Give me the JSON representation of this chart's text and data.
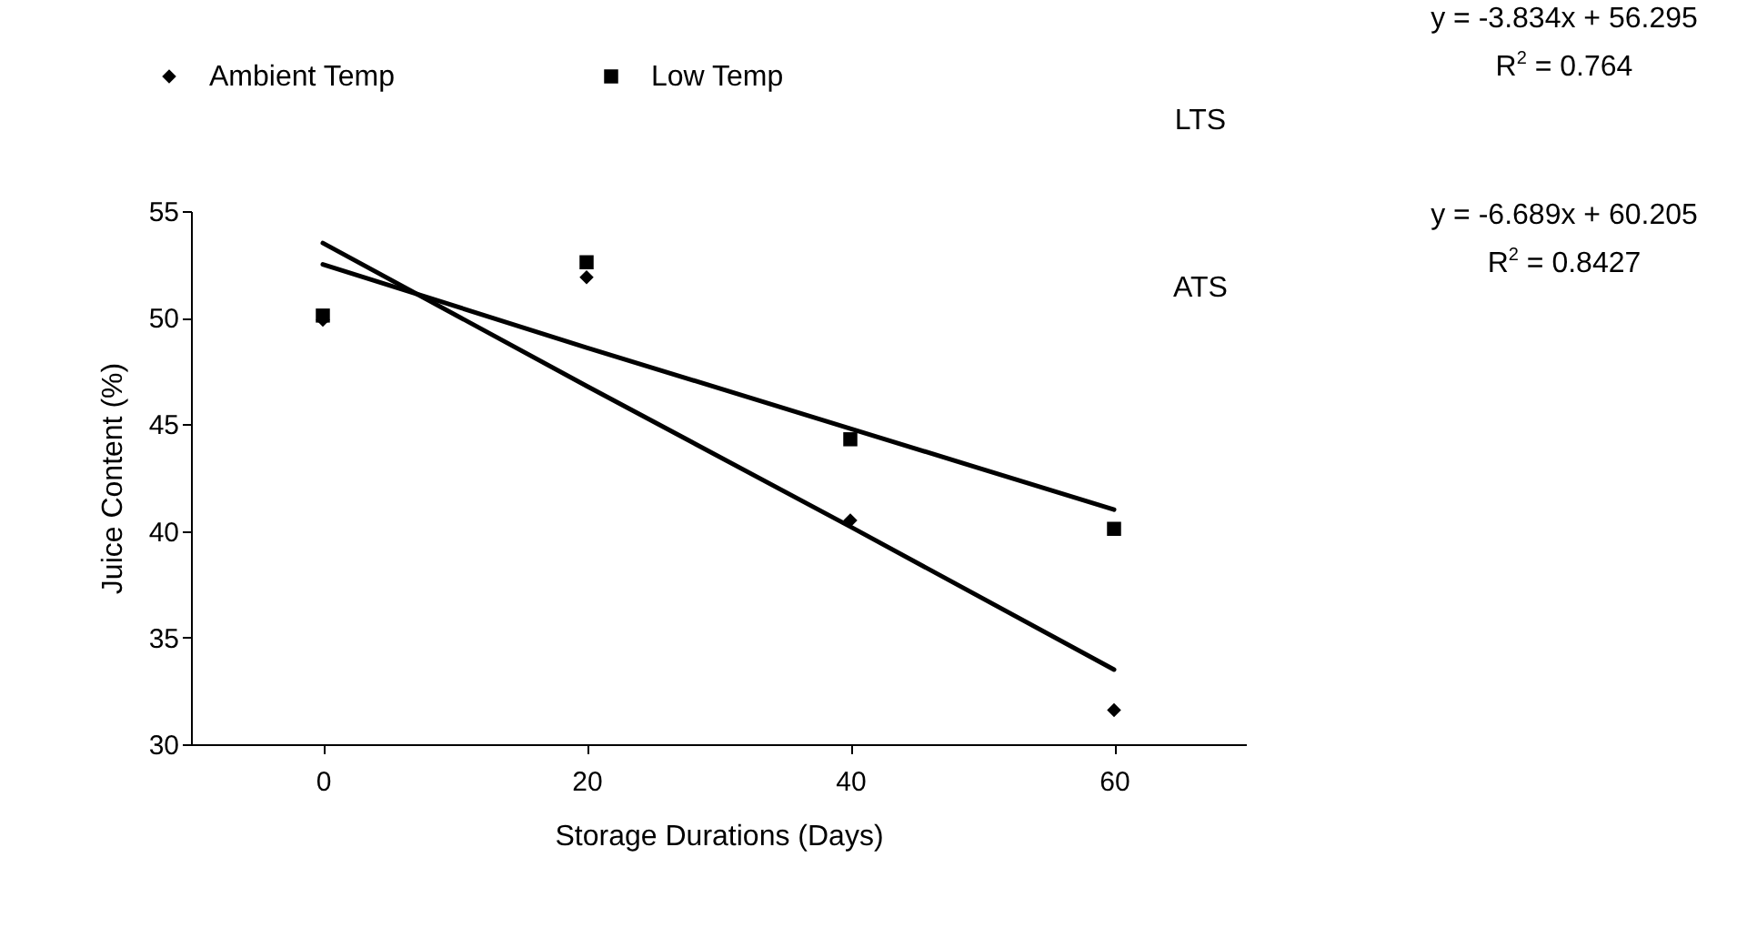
{
  "chart_data": {
    "type": "scatter",
    "xlabel": "Storage Durations (Days)",
    "ylabel": "Juice Content (%)",
    "x": [
      0,
      20,
      40,
      60
    ],
    "xlim": [
      -10,
      70
    ],
    "xticks": [
      0,
      20,
      40,
      60
    ],
    "ylim": [
      30,
      55
    ],
    "yticks": [
      30,
      35,
      40,
      45,
      50,
      55
    ],
    "grid": false,
    "legend": "top left",
    "series": [
      {
        "name": "Ambient Temp",
        "marker": "diamond",
        "color": "#000000",
        "values": [
          49.9,
          51.9,
          40.5,
          31.6
        ]
      },
      {
        "name": "Low Temp",
        "marker": "square",
        "color": "#000000",
        "values": [
          50.1,
          52.6,
          44.3,
          40.1
        ]
      },
      {
        "type": "line",
        "marker": "none",
        "color": "#000000",
        "values": [
          52.5,
          48.6,
          44.8,
          41.0
        ]
      },
      {
        "type": "line",
        "marker": "none",
        "color": "#000000",
        "values": [
          53.5,
          46.8,
          40.2,
          33.5
        ]
      }
    ],
    "annotations": [
      "y = -3.834x + 56.295",
      "R$^{2}$ = 0.764",
      "LTS",
      "ATS",
      "y = -6.689x + 60.205",
      "R$^{2}$ = 0.8427"
    ]
  }
}
